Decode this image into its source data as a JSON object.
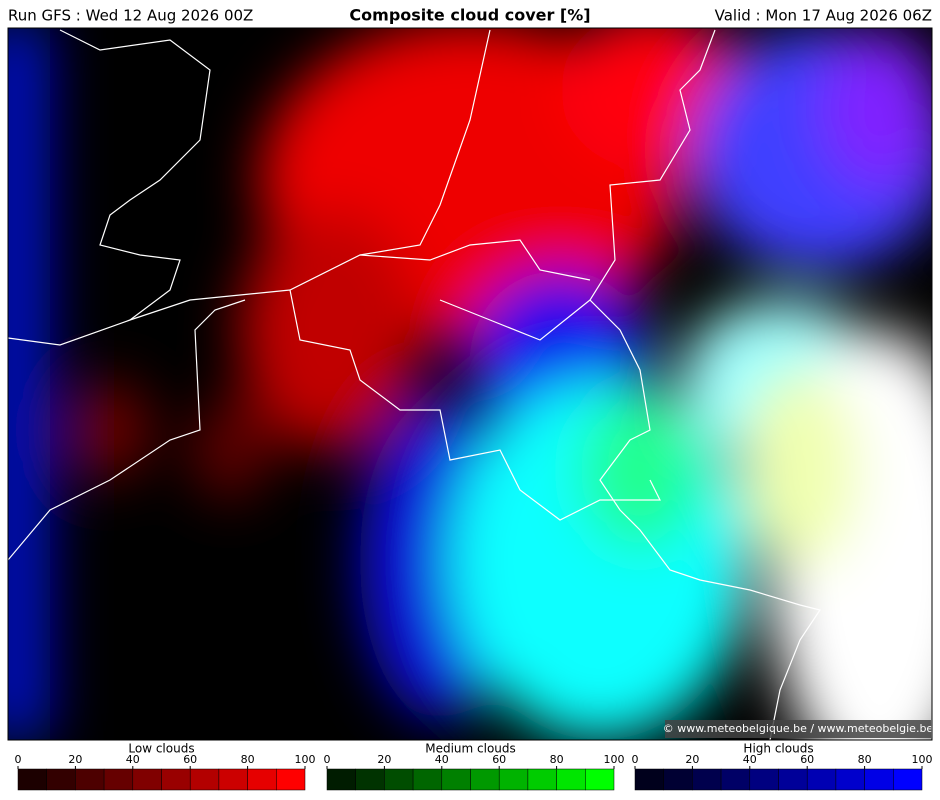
{
  "header": {
    "left": "Run GFS : Wed 12 Aug 2026 00Z",
    "title": "Composite cloud cover [%]",
    "right": "Valid : Mon 17 Aug 2026 06Z"
  },
  "map": {
    "credit": "© www.meteobelgique.be / www.meteobelgie.be"
  },
  "legends": [
    {
      "label": "Low clouds",
      "ticks": [
        0,
        20,
        40,
        60,
        80,
        100
      ],
      "colors": [
        "#1c0000",
        "#330000",
        "#4d0000",
        "#660000",
        "#800000",
        "#990000",
        "#b30000",
        "#cc0000",
        "#e60000",
        "#ff0000"
      ]
    },
    {
      "label": "Medium clouds",
      "ticks": [
        0,
        20,
        40,
        60,
        80,
        100
      ],
      "colors": [
        "#001c00",
        "#003300",
        "#004d00",
        "#006600",
        "#008000",
        "#009900",
        "#00b300",
        "#00cc00",
        "#00e600",
        "#00ff00"
      ]
    },
    {
      "label": "High clouds",
      "ticks": [
        0,
        20,
        40,
        60,
        80,
        100
      ],
      "colors": [
        "#00001c",
        "#000033",
        "#00004d",
        "#000066",
        "#000080",
        "#000099",
        "#0000b3",
        "#0000cc",
        "#0000e6",
        "#0000ff"
      ]
    }
  ]
}
